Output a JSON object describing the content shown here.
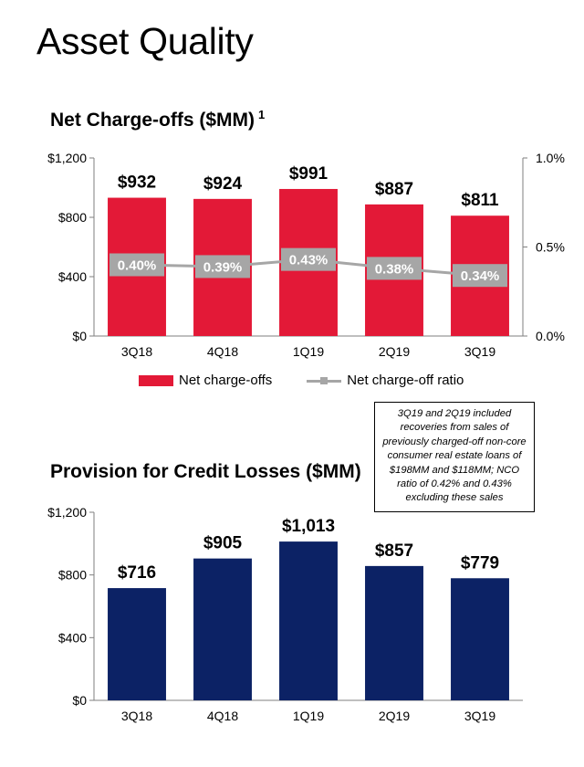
{
  "page": {
    "title": "Asset Quality"
  },
  "chart_data": [
    {
      "type": "bar",
      "title": "Net Charge-offs ($MM)",
      "title_footnote": "1",
      "categories": [
        "3Q18",
        "4Q18",
        "1Q19",
        "2Q19",
        "3Q19"
      ],
      "series": [
        {
          "name": "Net charge-offs",
          "values": [
            932,
            924,
            991,
            887,
            811
          ],
          "labels": [
            "$932",
            "$924",
            "$991",
            "$887",
            "$811"
          ],
          "color": "#e31937",
          "axis": "left"
        },
        {
          "name": "Net charge-off ratio",
          "type": "line",
          "values": [
            0.4,
            0.39,
            0.43,
            0.38,
            0.34
          ],
          "labels": [
            "0.40%",
            "0.39%",
            "0.43%",
            "0.38%",
            "0.34%"
          ],
          "color": "#a6a6a6",
          "axis": "right"
        }
      ],
      "ylim": [
        0,
        1200
      ],
      "yticks": [
        "$0",
        "$400",
        "$800",
        "$1,200"
      ],
      "ytick_values": [
        0,
        400,
        800,
        1200
      ],
      "y2lim": [
        0,
        1.0
      ],
      "y2ticks": [
        "0.0%",
        "0.5%",
        "1.0%"
      ],
      "y2tick_values": [
        0,
        0.5,
        1.0
      ],
      "grid": false,
      "legend": "bottom"
    },
    {
      "type": "bar",
      "title": "Provision for Credit Losses ($MM)",
      "categories": [
        "3Q18",
        "4Q18",
        "1Q19",
        "2Q19",
        "3Q19"
      ],
      "series": [
        {
          "values": [
            716,
            905,
            1013,
            857,
            779
          ],
          "labels": [
            "$716",
            "$905",
            "$1,013",
            "$857",
            "$779"
          ],
          "color": "#0c2265"
        }
      ],
      "ylim": [
        0,
        1200
      ],
      "yticks": [
        "$0",
        "$400",
        "$800",
        "$1,200"
      ],
      "ytick_values": [
        0,
        400,
        800,
        1200
      ],
      "grid": false
    }
  ],
  "note": "3Q19 and 2Q19 included recoveries from sales of previously charged-off non-core consumer real estate loans of $198MM and $118MM; NCO ratio of 0.42% and 0.43% excluding these sales"
}
